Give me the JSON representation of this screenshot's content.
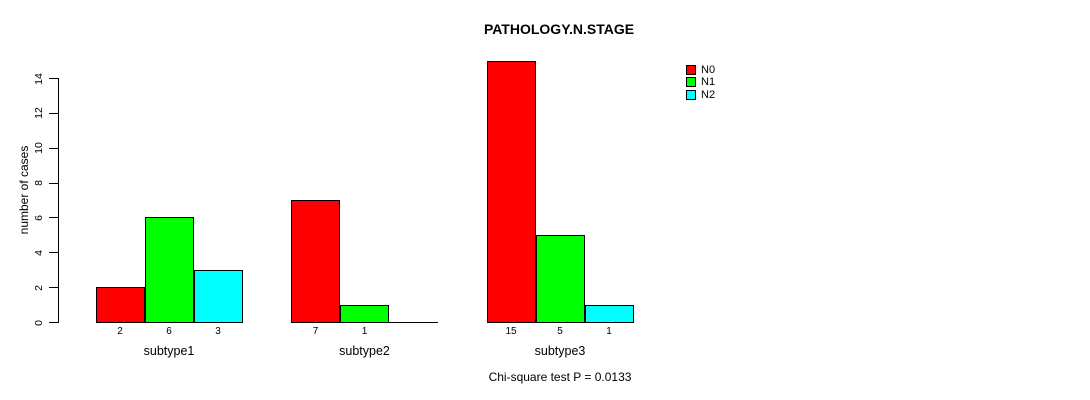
{
  "chart_data": {
    "type": "bar",
    "grouped": true,
    "title": "PATHOLOGY.N.STAGE",
    "ylabel": "number of cases",
    "xlabel": "",
    "annotation": "Chi-square test P = 0.0133",
    "categories": [
      "subtype1",
      "subtype2",
      "subtype3"
    ],
    "series": [
      {
        "name": "N0",
        "color": "#ff0000",
        "values": [
          2,
          7,
          15
        ]
      },
      {
        "name": "N1",
        "color": "#00ff00",
        "values": [
          6,
          1,
          5
        ]
      },
      {
        "name": "N2",
        "color": "#00ffff",
        "values": [
          3,
          0,
          1
        ]
      }
    ],
    "yticks": [
      0,
      2,
      4,
      6,
      8,
      10,
      12,
      14
    ],
    "ylim": [
      0,
      14
    ],
    "grid": false,
    "bar_value_labels_shown": true,
    "legend_position": "top-right",
    "legend_entries": [
      "N0",
      "N1",
      "N2"
    ],
    "axis_color": "#000000",
    "bar_border_color": "#000000",
    "background_color": "#ffffff"
  }
}
